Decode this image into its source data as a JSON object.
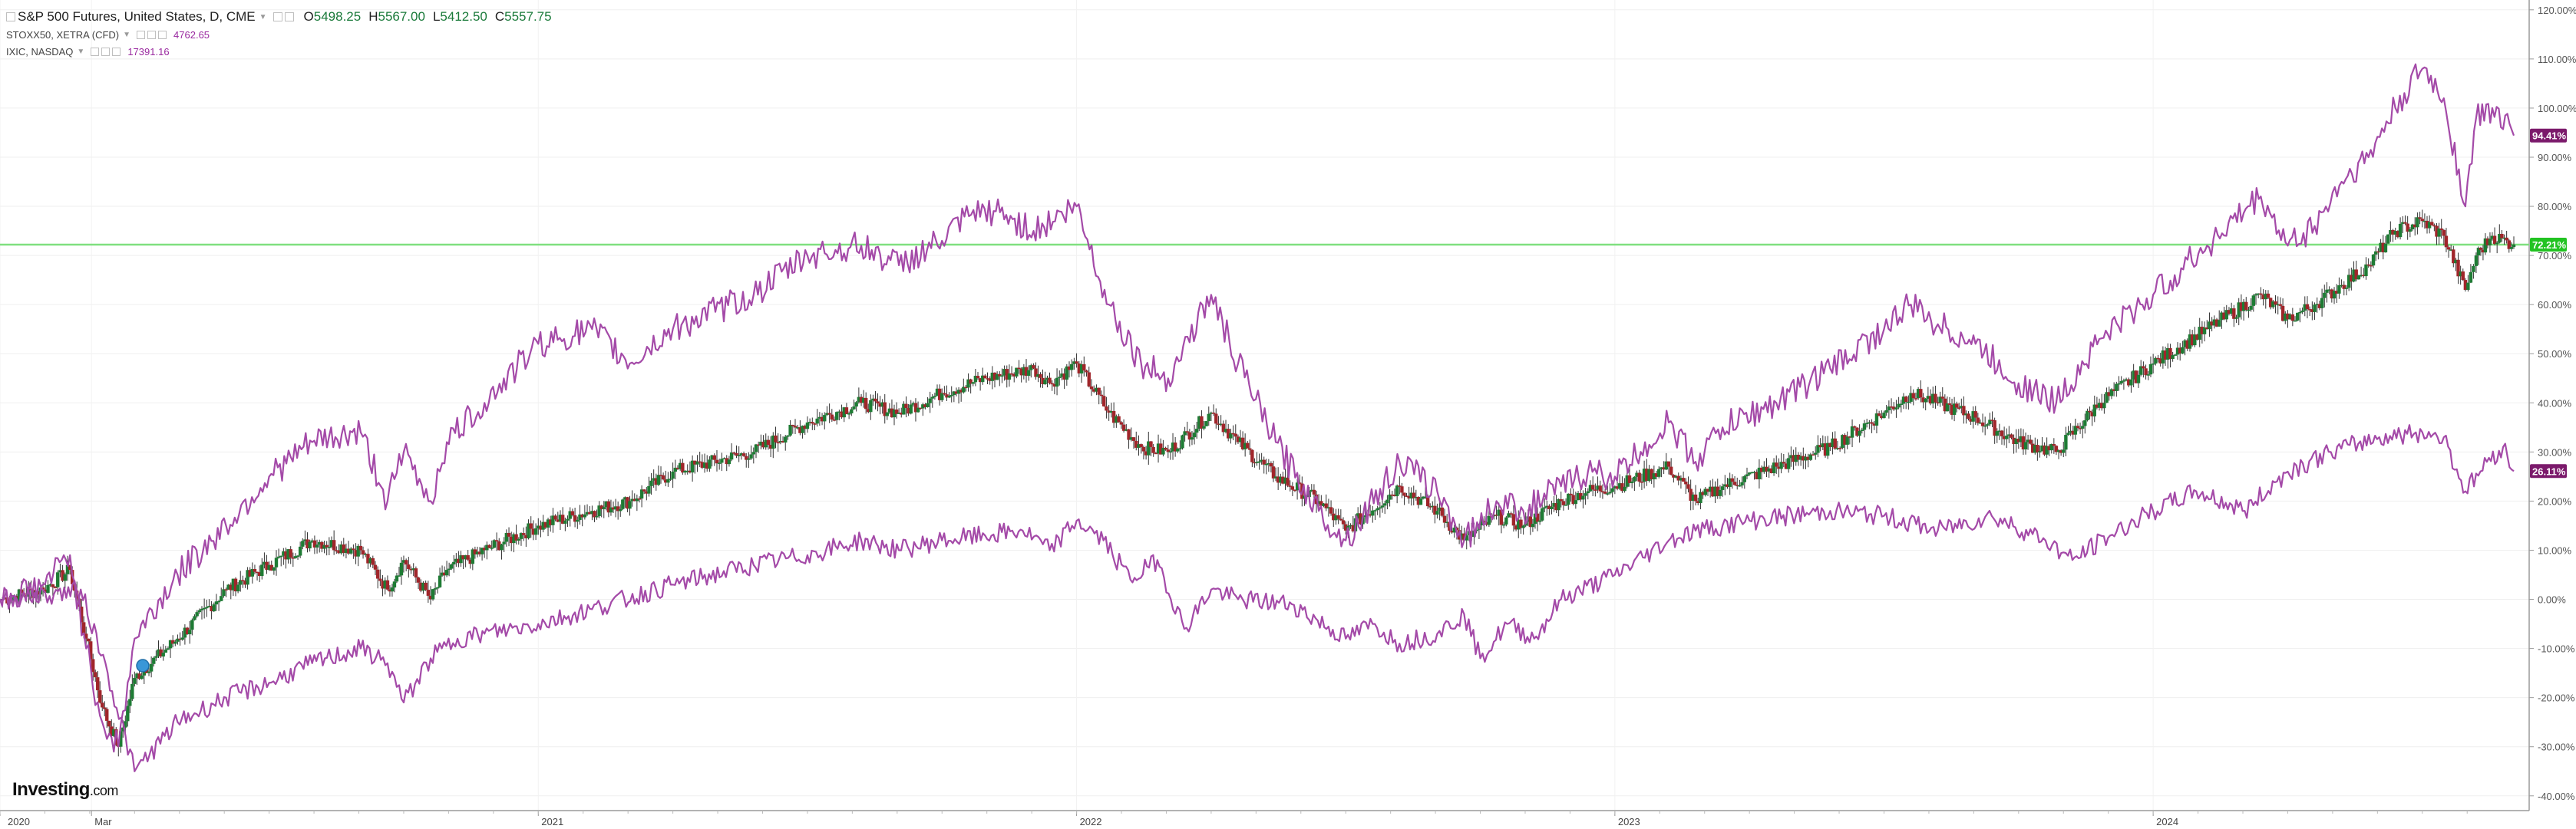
{
  "legend": {
    "main_title": "S&P 500 Futures, United States, D, CME",
    "open_label": "O",
    "open": "5498.25",
    "high_label": "H",
    "high": "5567.00",
    "low_label": "L",
    "low": "5412.50",
    "close_label": "C",
    "close": "5557.75",
    "series2_title": "STOXX50, XETRA (CFD)",
    "series2_value": "4762.65",
    "series3_title": "IXIC, NASDAQ",
    "series3_value": "17391.16"
  },
  "branding": {
    "logo_main": "Investing",
    "logo_suffix": ".com"
  },
  "colors": {
    "sp500": "#1e7b34",
    "sp500_down": "#a0252a",
    "compare": "#a44aa8",
    "hline": "#7fe07f",
    "ixic_badge": "#7b1a6b",
    "stoxx_badge": "#7b1a6b",
    "sp_badge": "#22c322"
  },
  "chart_data": {
    "type": "line",
    "title": "S&P 500 Futures, United States, D, CME",
    "x_ticks": [
      "2020",
      "Mar",
      "2021",
      "2022",
      "2023",
      "2024"
    ],
    "x_tick_years": [
      2020.0,
      2020.17,
      2021.0,
      2022.0,
      2023.0,
      2024.0
    ],
    "xlim": [
      2020.0,
      2024.67
    ],
    "y_ticks": [
      "-40.00%",
      "-30.00%",
      "-20.00%",
      "-10.00%",
      "0.00%",
      "10.00%",
      "20.00%",
      "30.00%",
      "40.00%",
      "50.00%",
      "60.00%",
      "70.00%",
      "80.00%",
      "90.00%",
      "100.00%",
      "110.00%",
      "120.00%"
    ],
    "ylim": [
      -43,
      122
    ],
    "horizontal_line": 72.21,
    "last_value_labels": {
      "ixic": "94.41%",
      "sp500": "72.21%",
      "stoxx": "26.11%"
    },
    "grid": true,
    "series": [
      {
        "name": "S&P 500 Futures",
        "style": "candles",
        "x": [
          2020.0,
          2020.08,
          2020.13,
          2020.16,
          2020.19,
          2020.22,
          2020.25,
          2020.33,
          2020.42,
          2020.5,
          2020.58,
          2020.67,
          2020.72,
          2020.75,
          2020.8,
          2020.83,
          2020.9,
          2021.0,
          2021.1,
          2021.17,
          2021.25,
          2021.4,
          2021.5,
          2021.6,
          2021.67,
          2021.75,
          2021.83,
          2021.92,
          2021.95,
          2022.0,
          2022.06,
          2022.12,
          2022.17,
          2022.25,
          2022.3,
          2022.37,
          2022.45,
          2022.5,
          2022.6,
          2022.67,
          2022.72,
          2022.78,
          2022.83,
          2022.9,
          2022.95,
          2023.0,
          2023.1,
          2023.15,
          2023.2,
          2023.3,
          2023.4,
          2023.5,
          2023.55,
          2023.6,
          2023.67,
          2023.75,
          2023.82,
          2023.9,
          2024.0,
          2024.1,
          2024.2,
          2024.25,
          2024.3,
          2024.35,
          2024.4,
          2024.45,
          2024.5,
          2024.54,
          2024.58,
          2024.6,
          2024.63,
          2024.67
        ],
        "y": [
          0,
          2,
          6,
          -8,
          -22,
          -30,
          -16,
          -8,
          2,
          7,
          12,
          10,
          2,
          8,
          0,
          6,
          10,
          15,
          18,
          20,
          26,
          30,
          36,
          40,
          38,
          42,
          45,
          47,
          44,
          48,
          38,
          31,
          30,
          38,
          32,
          25,
          20,
          14,
          23,
          18,
          12,
          17,
          15,
          20,
          22,
          23,
          27,
          20,
          23,
          27,
          31,
          38,
          42,
          40,
          37,
          32,
          30,
          40,
          48,
          55,
          62,
          57,
          60,
          64,
          68,
          75,
          77,
          74,
          63,
          70,
          74,
          72.21
        ]
      },
      {
        "name": "STOXX50, XETRA (CFD)",
        "style": "line",
        "x": [
          2020.0,
          2020.1,
          2020.15,
          2020.2,
          2020.25,
          2020.33,
          2020.42,
          2020.5,
          2020.58,
          2020.67,
          2020.72,
          2020.75,
          2020.8,
          2020.85,
          2020.9,
          2021.0,
          2021.1,
          2021.25,
          2021.4,
          2021.5,
          2021.6,
          2021.67,
          2021.75,
          2021.83,
          2021.9,
          2021.95,
          2022.0,
          2022.05,
          2022.1,
          2022.15,
          2022.2,
          2022.25,
          2022.3,
          2022.4,
          2022.5,
          2022.55,
          2022.6,
          2022.67,
          2022.72,
          2022.75,
          2022.8,
          2022.85,
          2022.9,
          2023.0,
          2023.1,
          2023.15,
          2023.2,
          2023.25,
          2023.4,
          2023.5,
          2023.6,
          2023.7,
          2023.8,
          2023.85,
          2023.92,
          2024.0,
          2024.08,
          2024.17,
          2024.25,
          2024.33,
          2024.42,
          2024.5,
          2024.54,
          2024.58,
          2024.62,
          2024.65,
          2024.67
        ],
        "y": [
          0,
          1,
          2,
          -15,
          -35,
          -25,
          -20,
          -17,
          -13,
          -10,
          -13,
          -21,
          -12,
          -8,
          -7,
          -5,
          -2,
          3,
          7,
          9,
          12,
          10,
          12,
          13,
          14,
          10,
          16,
          12,
          4,
          8,
          -6,
          2,
          0,
          -1,
          -8,
          -5,
          -9,
          -7,
          -3,
          -12,
          -5,
          -8,
          0,
          5,
          12,
          14,
          15,
          16,
          18,
          17,
          14,
          17,
          12,
          8,
          13,
          18,
          22,
          18,
          26,
          30,
          33,
          34,
          33,
          22,
          28,
          31,
          26.11
        ]
      },
      {
        "name": "IXIC, NASDAQ",
        "style": "line",
        "x": [
          2020.0,
          2020.08,
          2020.13,
          2020.16,
          2020.19,
          2020.22,
          2020.25,
          2020.33,
          2020.42,
          2020.5,
          2020.58,
          2020.67,
          2020.72,
          2020.75,
          2020.8,
          2020.83,
          2020.9,
          2021.0,
          2021.1,
          2021.17,
          2021.25,
          2021.4,
          2021.5,
          2021.6,
          2021.67,
          2021.75,
          2021.8,
          2021.85,
          2021.92,
          2022.0,
          2022.06,
          2022.12,
          2022.17,
          2022.25,
          2022.3,
          2022.37,
          2022.45,
          2022.5,
          2022.6,
          2022.67,
          2022.72,
          2022.78,
          2022.83,
          2022.9,
          2022.95,
          2023.0,
          2023.1,
          2023.15,
          2023.2,
          2023.3,
          2023.4,
          2023.5,
          2023.55,
          2023.6,
          2023.67,
          2023.75,
          2023.82,
          2023.9,
          2024.0,
          2024.1,
          2024.2,
          2024.25,
          2024.3,
          2024.35,
          2024.4,
          2024.45,
          2024.5,
          2024.54,
          2024.58,
          2024.6,
          2024.63,
          2024.67
        ],
        "y": [
          0,
          3,
          9,
          -10,
          -25,
          -30,
          -8,
          5,
          15,
          25,
          32,
          34,
          20,
          30,
          20,
          32,
          40,
          52,
          55,
          48,
          55,
          62,
          70,
          72,
          68,
          73,
          78,
          79,
          75,
          80,
          60,
          48,
          45,
          62,
          48,
          32,
          18,
          12,
          28,
          22,
          12,
          20,
          18,
          23,
          26,
          25,
          36,
          28,
          35,
          40,
          47,
          55,
          60,
          56,
          52,
          44,
          40,
          53,
          62,
          72,
          82,
          72,
          76,
          85,
          90,
          100,
          108,
          102,
          80,
          98,
          100,
          94.41
        ]
      }
    ]
  }
}
